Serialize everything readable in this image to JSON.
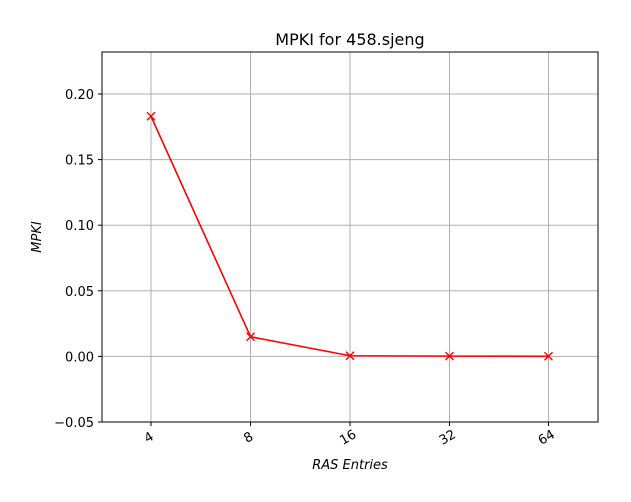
{
  "chart_data": {
    "type": "line",
    "title": "MPKI for 458.sjeng",
    "xlabel": "RAS Entries",
    "ylabel": "MPKI",
    "categories": [
      "4",
      "8",
      "16",
      "32",
      "64"
    ],
    "series": [
      {
        "values": [
          0.183,
          0.015,
          0.0005,
          0.0002,
          0.0001
        ],
        "color": "#ff0000",
        "marker": "x"
      }
    ],
    "ylim": [
      -0.05,
      0.232
    ],
    "yticks": [
      -0.05,
      0.0,
      0.05,
      0.1,
      0.15,
      0.2
    ],
    "ytick_labels": [
      "−0.05",
      "0.00",
      "0.05",
      "0.10",
      "0.15",
      "0.20"
    ],
    "grid": true,
    "legend": "none"
  }
}
